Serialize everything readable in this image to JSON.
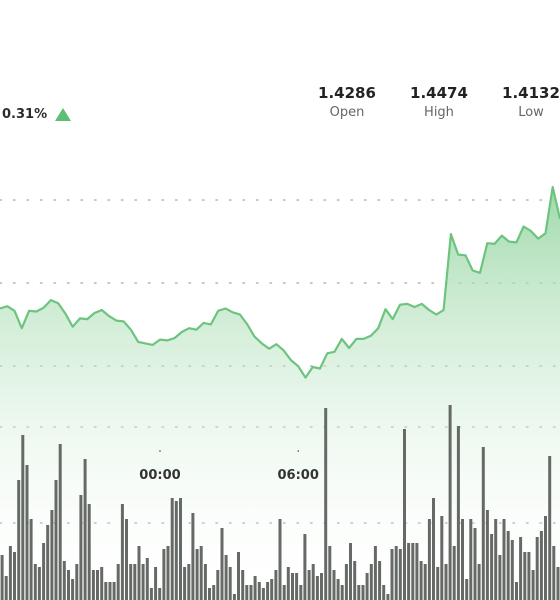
{
  "header": {
    "change_text": "0.31%",
    "change_direction_icon": "triangle-up-icon",
    "stats": [
      {
        "value": "1.4286",
        "label": "Open"
      },
      {
        "value": "1.4474",
        "label": "High"
      },
      {
        "value": "1.4132",
        "label": "Low"
      }
    ]
  },
  "colors": {
    "line": "#6cc47f",
    "area_top": "#8fd39c",
    "area_bottom": "#ffffff",
    "volume_bar": "#666a66",
    "grid_dot": "#b5b5b5",
    "up_indicator": "#5cbf73"
  },
  "chart_data": [
    {
      "type": "area",
      "x_ticks": [
        "00:00",
        "06:00"
      ],
      "x_tick_positions": [
        22,
        41
      ],
      "ylim": [
        1.4105,
        1.45
      ],
      "grid": "dotted horizontal",
      "values": [
        1.4265,
        1.4268,
        1.4262,
        1.4239,
        1.4262,
        1.4261,
        1.4266,
        1.4276,
        1.4272,
        1.4258,
        1.4241,
        1.4252,
        1.4251,
        1.4259,
        1.4263,
        1.4255,
        1.4249,
        1.4248,
        1.4237,
        1.4221,
        1.4219,
        1.4217,
        1.4224,
        1.4223,
        1.4226,
        1.4234,
        1.4239,
        1.4237,
        1.4246,
        1.4244,
        1.4262,
        1.4265,
        1.426,
        1.4257,
        1.4244,
        1.4228,
        1.4219,
        1.4212,
        1.4218,
        1.421,
        1.4197,
        1.4189,
        1.4174,
        1.4188,
        1.4186,
        1.4206,
        1.4208,
        1.4225,
        1.4213,
        1.4225,
        1.4225,
        1.4229,
        1.4239,
        1.4264,
        1.4251,
        1.427,
        1.4271,
        1.4267,
        1.4271,
        1.4263,
        1.4257,
        1.4263,
        1.4363,
        1.4336,
        1.4335,
        1.4315,
        1.4312,
        1.4351,
        1.435,
        1.4361,
        1.4353,
        1.4352,
        1.4373,
        1.4367,
        1.4357,
        1.4364,
        1.4425,
        1.4383
      ]
    },
    {
      "type": "bar",
      "name": "volume",
      "values": [
        15,
        8,
        18,
        16,
        40,
        55,
        45,
        27,
        12,
        11,
        19,
        25,
        30,
        40,
        52,
        13,
        10,
        7,
        12,
        35,
        47,
        32,
        10,
        10,
        11,
        6,
        6,
        6,
        12,
        32,
        27,
        12,
        12,
        18,
        12,
        14,
        4,
        11,
        4,
        17,
        18,
        34,
        33,
        34,
        11,
        12,
        29,
        17,
        18,
        12,
        4,
        5,
        10,
        24,
        15,
        11,
        2,
        16,
        10,
        5,
        5,
        8,
        6,
        4,
        6,
        7,
        10,
        27,
        5,
        11,
        9,
        9,
        5,
        22,
        10,
        12,
        8,
        9,
        64,
        18,
        10,
        7,
        5,
        12,
        19,
        13,
        5,
        5,
        9,
        12,
        18,
        13,
        5,
        2,
        17,
        18,
        17,
        57,
        19,
        19,
        19,
        13,
        12,
        27,
        34,
        11,
        28,
        12,
        65,
        18,
        58,
        27,
        7,
        27,
        24,
        12,
        51,
        30,
        22,
        27,
        15,
        27,
        23,
        20,
        6,
        21,
        16,
        16,
        10,
        21,
        23,
        28,
        48,
        18,
        11
      ]
    }
  ]
}
